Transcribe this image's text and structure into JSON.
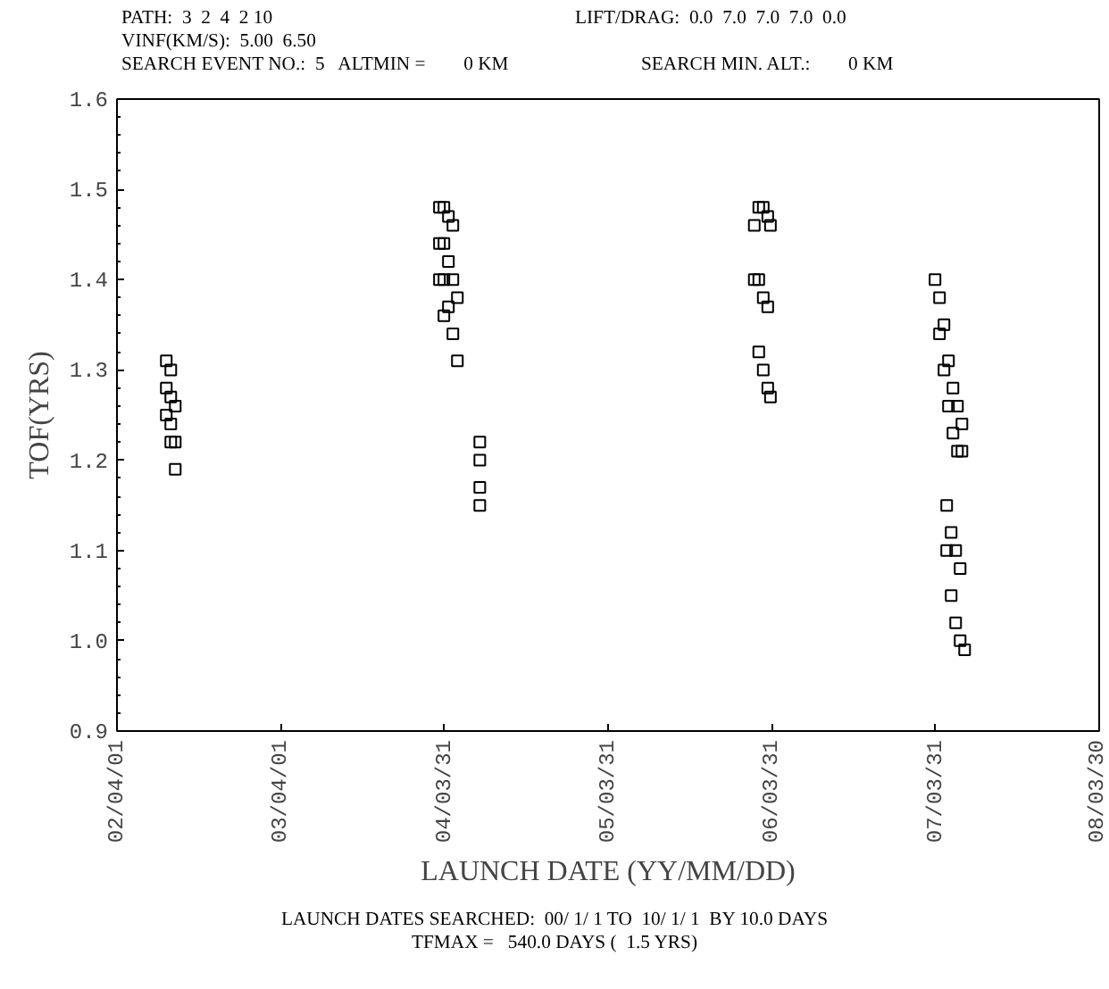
{
  "chart_data": {
    "type": "scatter",
    "marker": "square",
    "grid": false,
    "xlabel": "LAUNCH DATE (YY/MM/DD)",
    "ylabel": "TOF(YRS)",
    "annotations": [
      "PATH:  3  2  4  2 10",
      "LIFT/DRAG:  0.0  7.0  7.0  7.0  0.0",
      "VINF(KM/S):  5.00  6.50",
      "SEARCH EVENT NO.:  5   ALTMIN =        0 KM",
      "SEARCH MIN. ALT.:        0 KM",
      "LAUNCH DATES SEARCHED:  00/ 1/ 1 TO  10/ 1/ 1  BY 10.0 DAYS",
      "TFMAX =   540.0 DAYS (  1.5 YRS)"
    ],
    "xlim": [
      "2002-04-01",
      "2008-03-30"
    ],
    "xticks": [
      {
        "value": "2002-04-01",
        "label": "02/04/01"
      },
      {
        "value": "2003-04-01",
        "label": "03/04/01"
      },
      {
        "value": "2004-03-31",
        "label": "04/03/31"
      },
      {
        "value": "2005-03-31",
        "label": "05/03/31"
      },
      {
        "value": "2006-03-31",
        "label": "06/03/31"
      },
      {
        "value": "2007-03-31",
        "label": "07/03/31"
      },
      {
        "value": "2008-03-30",
        "label": "08/03/30"
      }
    ],
    "ylim": [
      0.9,
      1.6
    ],
    "yticks": [
      {
        "value": 0.9,
        "label": "0.9"
      },
      {
        "value": 1.0,
        "label": "1.0"
      },
      {
        "value": 1.1,
        "label": "1.1"
      },
      {
        "value": 1.2,
        "label": "1.2"
      },
      {
        "value": 1.3,
        "label": "1.3"
      },
      {
        "value": 1.4,
        "label": "1.4"
      },
      {
        "value": 1.5,
        "label": "1.5"
      },
      {
        "value": 1.6,
        "label": "1.6"
      }
    ],
    "series": [
      {
        "color": "#000000",
        "x": [
          "2002-07-20",
          "2002-07-20",
          "2002-07-20",
          "2002-07-30",
          "2002-07-30",
          "2002-07-30",
          "2002-07-30",
          "2002-08-09",
          "2002-08-09",
          "2002-08-09",
          "2004-03-20",
          "2004-03-20",
          "2004-03-20",
          "2004-03-30",
          "2004-03-30",
          "2004-03-30",
          "2004-03-30",
          "2004-04-09",
          "2004-04-09",
          "2004-04-09",
          "2004-04-19",
          "2004-04-19",
          "2004-04-19",
          "2004-04-29",
          "2004-04-29",
          "2004-06-18",
          "2004-06-18",
          "2004-06-18",
          "2004-06-18",
          "2006-02-20",
          "2006-02-20",
          "2006-03-02",
          "2006-03-02",
          "2006-03-02",
          "2006-03-12",
          "2006-03-12",
          "2006-03-12",
          "2006-03-22",
          "2006-03-22",
          "2006-03-22",
          "2006-03-28",
          "2006-03-28",
          "2007-03-30",
          "2007-04-09",
          "2007-04-09",
          "2007-04-19",
          "2007-04-19",
          "2007-04-29",
          "2007-04-29",
          "2007-05-09",
          "2007-05-09",
          "2007-05-19",
          "2007-05-19",
          "2007-05-29",
          "2007-05-29",
          "2007-04-25",
          "2007-04-25",
          "2007-05-05",
          "2007-05-05",
          "2007-05-15",
          "2007-05-15",
          "2007-05-25",
          "2007-05-25",
          "2007-06-04"
        ],
        "values": [
          1.31,
          1.28,
          1.25,
          1.3,
          1.27,
          1.24,
          1.22,
          1.26,
          1.22,
          1.19,
          1.48,
          1.44,
          1.4,
          1.48,
          1.44,
          1.4,
          1.36,
          1.47,
          1.42,
          1.37,
          1.46,
          1.4,
          1.34,
          1.38,
          1.31,
          1.22,
          1.2,
          1.17,
          1.15,
          1.46,
          1.4,
          1.48,
          1.4,
          1.32,
          1.48,
          1.38,
          1.3,
          1.47,
          1.37,
          1.28,
          1.46,
          1.27,
          1.4,
          1.38,
          1.34,
          1.35,
          1.3,
          1.31,
          1.26,
          1.28,
          1.23,
          1.26,
          1.21,
          1.24,
          1.21,
          1.15,
          1.1,
          1.12,
          1.05,
          1.1,
          1.02,
          1.08,
          1.0,
          0.99
        ]
      }
    ]
  }
}
